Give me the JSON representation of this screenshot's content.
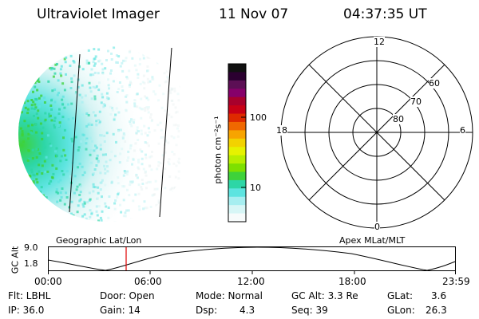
{
  "header": {
    "instrument": "Ultraviolet Imager",
    "date": "11 Nov 07",
    "time": "04:37:35 UT"
  },
  "colorbar": {
    "unit": "photon cm⁻²s⁻¹",
    "ticks": [
      "100",
      "10"
    ],
    "colors": [
      "#111111",
      "#2b0030",
      "#5c0f55",
      "#86006a",
      "#a8002c",
      "#c80016",
      "#de2a00",
      "#f06800",
      "#f7a400",
      "#f2d200",
      "#e6f200",
      "#b8ee00",
      "#7ee000",
      "#3ed23a",
      "#2dd6a6",
      "#5de4e0",
      "#a6eef0",
      "#d7f6f6",
      "#f7fbfb"
    ]
  },
  "polar_plot": {
    "mlt_labels": [
      "12",
      "18",
      "6",
      "0"
    ],
    "lat_labels": [
      "60",
      "70",
      "80"
    ]
  },
  "orbit_plot": {
    "left_title": "Geographic Lat/Lon",
    "right_title": "Apex MLat/MLT",
    "ylabel": "GC Alt",
    "y_ticks": [
      "9.0",
      "1.8"
    ],
    "x_ticks": [
      "00:00",
      "06:00",
      "12:00",
      "18:00",
      "23:59"
    ],
    "marker_color": "#e00000"
  },
  "info": {
    "row1": {
      "flt": "Flt: LBHL",
      "door": "Door: Open",
      "mode": "Mode: Normal",
      "gc_alt": "GC Alt: 3.3 Re",
      "glat_label": "GLat:",
      "glat_value": "3.6"
    },
    "row2": {
      "ip": "IP: 36.0",
      "gain": "Gain: 14",
      "dsp_label": "Dsp:",
      "dsp_value": "4.3",
      "seq": "Seq: 39",
      "glon_label": "GLon:",
      "glon_value": "26.3"
    }
  }
}
